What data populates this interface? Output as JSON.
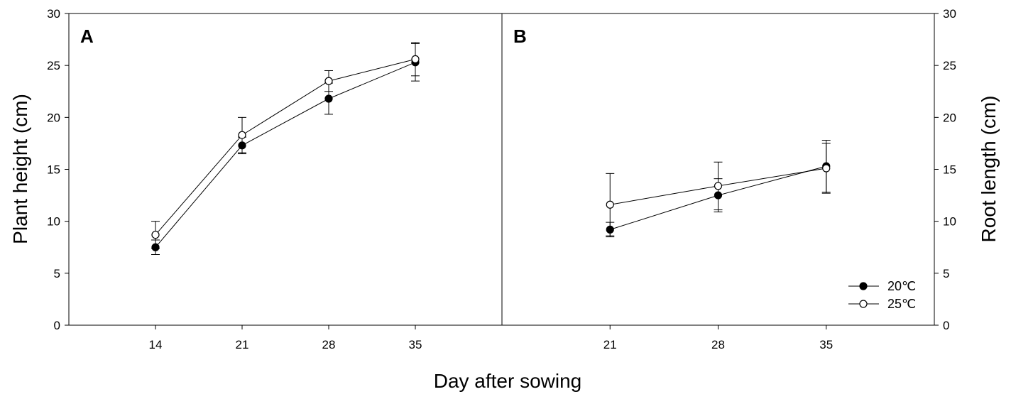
{
  "chart_data": [
    {
      "type": "line",
      "panel_label": "A",
      "ylabel": "Plant height (cm)",
      "xlabel": "Day after sowing",
      "ylim": [
        0,
        30
      ],
      "yticks": [
        0,
        5,
        10,
        15,
        20,
        25,
        30
      ],
      "xticks": [
        14,
        21,
        28,
        35
      ],
      "xlim": [
        7,
        42
      ],
      "series": [
        {
          "name": "20℃",
          "marker": "filled",
          "x": [
            14,
            21,
            28,
            35
          ],
          "y": [
            7.5,
            17.3,
            21.8,
            25.3
          ],
          "err": [
            0.7,
            0.8,
            1.5,
            1.8
          ]
        },
        {
          "name": "25℃",
          "marker": "open",
          "x": [
            14,
            21,
            28,
            35
          ],
          "y": [
            8.7,
            18.3,
            23.5,
            25.6
          ],
          "err": [
            1.3,
            1.7,
            1.0,
            1.6
          ]
        }
      ]
    },
    {
      "type": "line",
      "panel_label": "B",
      "ylabel": "Root length (cm)",
      "xlabel": "Day after sowing",
      "ylim": [
        0,
        30
      ],
      "yticks": [
        0,
        5,
        10,
        15,
        20,
        25,
        30
      ],
      "xticks": [
        21,
        28,
        35
      ],
      "xlim": [
        14,
        42
      ],
      "legend_position": "bottom-right",
      "series": [
        {
          "name": "20℃",
          "marker": "filled",
          "x": [
            21,
            28,
            35
          ],
          "y": [
            9.2,
            12.5,
            15.3
          ],
          "err": [
            0.7,
            1.6,
            2.5
          ]
        },
        {
          "name": "25℃",
          "marker": "open",
          "x": [
            21,
            28,
            35
          ],
          "y": [
            11.6,
            13.4,
            15.1
          ],
          "err": [
            3.0,
            2.3,
            2.4
          ]
        }
      ]
    }
  ]
}
